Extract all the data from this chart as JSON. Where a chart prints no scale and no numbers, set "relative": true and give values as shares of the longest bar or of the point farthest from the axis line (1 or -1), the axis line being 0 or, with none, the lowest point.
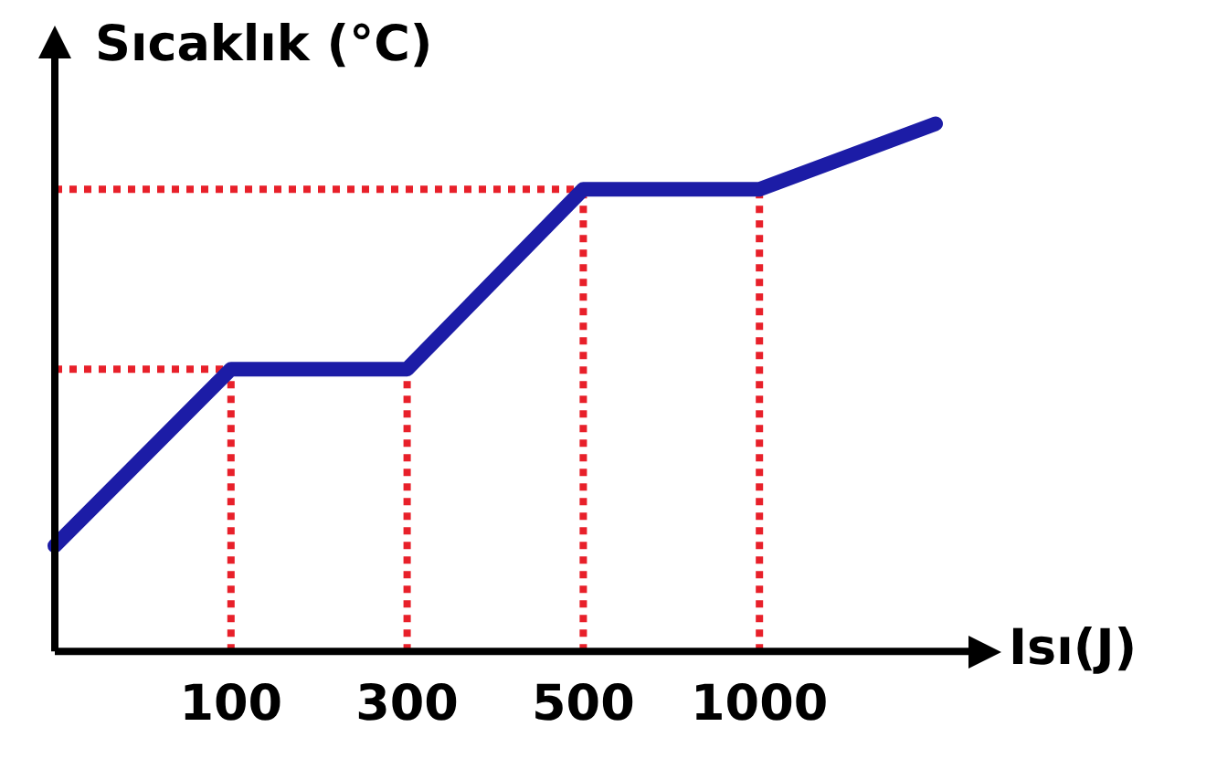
{
  "chart_data": {
    "type": "line",
    "relative": true,
    "xlabel": "Isı(J)",
    "ylabel": "Sıcaklık (°C)",
    "categories": [
      null,
      "100",
      "300",
      "500",
      "1000",
      null
    ],
    "series": [
      {
        "color": "#1c1ca6",
        "values": [
          0.2,
          0.535,
          0.535,
          0.876,
          0.876,
          1
        ]
      }
    ],
    "ref_lines": [
      {
        "axis": "x",
        "value": "100",
        "color": "#e8202a",
        "line_style": "dotted"
      },
      {
        "axis": "x",
        "value": "300",
        "color": "#e8202a",
        "line_style": "dotted"
      },
      {
        "axis": "x",
        "value": "500",
        "color": "#e8202a",
        "line_style": "dotted"
      },
      {
        "axis": "x",
        "value": "1000",
        "color": "#e8202a",
        "line_style": "dotted"
      },
      {
        "axis": "y",
        "value": 0.535,
        "color": "#e8202a",
        "line_style": "dotted"
      },
      {
        "axis": "y",
        "value": 0.876,
        "color": "#e8202a",
        "line_style": "dotted"
      }
    ],
    "grid": false,
    "legend": false,
    "marker": "none",
    "line_style": "solid"
  }
}
